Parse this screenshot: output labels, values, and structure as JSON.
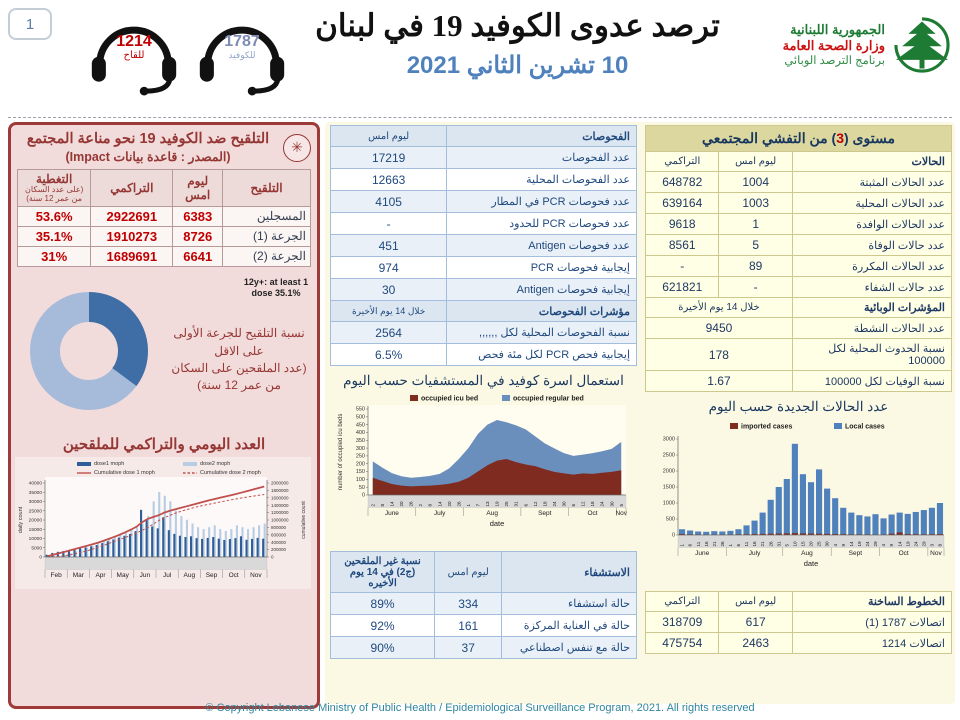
{
  "header": {
    "page_number": "1",
    "hotline_vaccine": {
      "number": "1214",
      "label": "للقاح"
    },
    "hotline_covid": {
      "number": "1787",
      "label": "للكوفيد"
    },
    "title": "ترصد عدوى الكوفيد 19 في لبنان",
    "date": "10 تشرين الثاني 2021",
    "logo": {
      "line1": "الجمهورية اللبنانية",
      "line2": "وزارة الصحة العامة",
      "line3": "برنامج الترصد الوبائي"
    }
  },
  "vaccination_panel": {
    "title": "التلقيح ضد الكوفيد 19  نحو مناعة المجتمع",
    "subtitle": "(المصدر : قاعدة بيانات Impact)",
    "table": {
      "headers": [
        "التلقيح",
        "ليوم امس",
        "التراكمي",
        "التغطية"
      ],
      "coverage_note": "(على عدد السكان من عمر 12 سنة)",
      "rows": [
        {
          "label": "المسجلين",
          "yesterday": "6383",
          "cumulative": "2922691",
          "coverage": "53.6%"
        },
        {
          "label": "الجرعة (1)",
          "yesterday": "8726",
          "cumulative": "1910273",
          "coverage": "35.1%"
        },
        {
          "label": "الجرعة (2)",
          "yesterday": "6641",
          "cumulative": "1689691",
          "coverage": "31%"
        }
      ]
    },
    "donut_label": "12y+: at least 1 dose 35.1%",
    "donut_note1": "نسبة التلقيح للجرعة الأولى على الاقل",
    "donut_note2": "(عدد الملقحين على السكان من عمر 12 سنة)",
    "chart_title": "العدد اليومي والتراكمي للملقحين"
  },
  "tests_table": {
    "headers": [
      "الفحوصات",
      "ليوم امس"
    ],
    "rows": [
      [
        "عدد الفحوصات",
        "17219"
      ],
      [
        "عدد الفحوصات المحلية",
        "12663"
      ],
      [
        "عدد فحوصات PCR في المطار",
        "4105"
      ],
      [
        "عدد فحوصات PCR للحدود",
        "-"
      ],
      [
        "عدد فحوصات Antigen",
        "451"
      ],
      [
        "إيجابية فحوصات PCR",
        "974"
      ],
      [
        "إيجابية فحوصات Antigen",
        "30"
      ]
    ],
    "subheader": [
      "مؤشرات الفحوصات",
      "خلال 14 يوم الأخيرة"
    ],
    "indicator_rows": [
      [
        "نسبة الفحوصات المحلية لكل ,,,,,,",
        "2564"
      ],
      [
        "إيجابية فحص PCR لكل مئة فحص",
        "6.5%"
      ]
    ]
  },
  "beds_chart_title": "استعمال اسرة كوفيد في المستشفيات حسب اليوم",
  "hospital_table": {
    "headers": [
      "الاستشفاء",
      "ليوم امس",
      "نسبة غير الملقحين (ج2) في 14 يوم الأخيره"
    ],
    "rows": [
      [
        "حالة استشفاء",
        "334",
        "89%"
      ],
      [
        "حالة في العناية المركزة",
        "161",
        "92%"
      ],
      [
        "حالة مع تنفس اصطناعي",
        "37",
        "90%"
      ]
    ]
  },
  "outbreak_table": {
    "title_pre": "مستوى (",
    "title_level": "3",
    "title_post": ") من التفشي المجتمعي",
    "headers": [
      "الحالات",
      "ليوم امس",
      "التراكمي"
    ],
    "rows": [
      [
        "عدد الحالات المثبتة",
        "1004",
        "648782"
      ],
      [
        "عدد الحالات المحلية",
        "1003",
        "639164"
      ],
      [
        "عدد الحالات الوافدة",
        "1",
        "9618"
      ],
      [
        "عدد حالات الوفاة",
        "5",
        "8561"
      ],
      [
        "عدد الحالات المكررة",
        "89",
        "-"
      ],
      [
        "عدد حالات الشفاء",
        "-",
        "621821"
      ]
    ],
    "subheader": [
      "المؤشرات الوبائية",
      "خلال 14 يوم الأخيرة"
    ],
    "indicator_rows": [
      [
        "عدد الحالات النشطة",
        "9450"
      ],
      [
        "نسبة الحدوث المحلية لكل 100000",
        "178"
      ],
      [
        "نسبة الوفيات لكل 100000",
        "1.67"
      ]
    ]
  },
  "new_cases_title": "عدد الحالات الجديدة حسب اليوم",
  "hotlines_table": {
    "headers": [
      "الخطوط الساخنة",
      "ليوم امس",
      "التراكمي"
    ],
    "rows": [
      [
        "اتصالات 1787 (1)",
        "617",
        "318709"
      ],
      [
        "اتصالات 1214",
        "2463",
        "475754"
      ]
    ]
  },
  "footer": "© Copyright Lebanese Ministry of Public Health / Epidemiological Surveillance Program, 2021. All rights reserved",
  "chart_data": [
    {
      "id": "vaccination_donut",
      "type": "pie",
      "title": "12y+: at least 1 dose 35.1%",
      "slices": [
        {
          "label": "12y+ with at least 1 dose",
          "value": 35.1,
          "color": "#3f6da5"
        },
        {
          "label": "remainder of 12y+ population",
          "value": 64.9,
          "color": "#a6bbda"
        }
      ]
    },
    {
      "id": "daily_vaccination",
      "type": "bar+line",
      "title": "العدد اليومي والتراكمي للملقحين",
      "ylabel_left": "daily count",
      "ylabel_right": "cumulative count",
      "ylim_left": [
        0,
        40000
      ],
      "ylim_right": [
        0,
        2000000
      ],
      "legend": [
        "dose1  moph",
        "dose2 moph",
        "Cumulative dose 1 moph",
        "Cumulative dose 2 moph"
      ],
      "months": [
        {
          "label": "Feb",
          "count": 4
        },
        {
          "label": "Mar",
          "count": 4
        },
        {
          "label": "Apr",
          "count": 4
        },
        {
          "label": "May",
          "count": 4
        },
        {
          "label": "Jun",
          "count": 4
        },
        {
          "label": "Jul",
          "count": 4
        },
        {
          "label": "Aug",
          "count": 4
        },
        {
          "label": "Sep",
          "count": 4
        },
        {
          "label": "Oct",
          "count": 4
        },
        {
          "label": "Nov",
          "count": 4
        }
      ],
      "series": [
        {
          "name": "dose1 moph",
          "color": "#2e5d97",
          "values": [
            1200,
            2200,
            2800,
            3200,
            3600,
            4200,
            4800,
            5200,
            5800,
            6500,
            7500,
            8500,
            9500,
            10500,
            11500,
            12500,
            14000,
            25500,
            20000,
            16500,
            15500,
            21500,
            14500,
            12500,
            11500,
            10800,
            11200,
            10200,
            9800,
            10300,
            10800,
            9900,
            9200,
            9700,
            10200,
            11200,
            9300,
            9800,
            10300,
            9900
          ]
        },
        {
          "name": "dose2 moph",
          "color": "#b8cce4",
          "values": [
            100,
            300,
            600,
            1100,
            2100,
            3100,
            4100,
            5100,
            6100,
            8100,
            9100,
            10100,
            11100,
            12100,
            13100,
            15100,
            16100,
            18100,
            22100,
            30100,
            35100,
            33100,
            30100,
            25100,
            22100,
            20100,
            18100,
            16100,
            15100,
            16100,
            17100,
            15100,
            14100,
            15100,
            17100,
            16100,
            15100,
            16100,
            17100,
            18100
          ]
        },
        {
          "name": "Cumulative dose 1 moph",
          "color": "#c0504d",
          "style": "solid",
          "values": [
            25000,
            60000,
            100000,
            140000,
            180000,
            220000,
            260000,
            300000,
            340000,
            385000,
            435000,
            490000,
            545000,
            605000,
            670000,
            740000,
            820000,
            940000,
            1030000,
            1080000,
            1130000,
            1200000,
            1250000,
            1290000,
            1330000,
            1370000,
            1410000,
            1450000,
            1490000,
            1530000,
            1565000,
            1600000,
            1635000,
            1670000,
            1705000,
            1745000,
            1785000,
            1825000,
            1865000,
            1905000
          ]
        },
        {
          "name": "Cumulative dose 2 moph",
          "color": "#c0504d",
          "style": "dashed",
          "values": [
            2000,
            8000,
            18000,
            35000,
            60000,
            90000,
            125000,
            165000,
            210000,
            260000,
            310000,
            365000,
            420000,
            475000,
            530000,
            590000,
            650000,
            720000,
            800000,
            890000,
            985000,
            1060000,
            1125000,
            1185000,
            1235000,
            1280000,
            1320000,
            1360000,
            1395000,
            1425000,
            1455000,
            1485000,
            1515000,
            1545000,
            1572000,
            1598000,
            1622000,
            1645000,
            1668000,
            1688000
          ]
        }
      ]
    },
    {
      "id": "hospital_beds",
      "type": "area",
      "title": "استعمال اسرة كوفيد في المستشفيات حسب اليوم",
      "ylabel": "number of occupied icu beds",
      "xlabel": "date",
      "ylim": [
        0,
        550
      ],
      "ystep": 50,
      "legend": [
        "occupied icu bed",
        "occupied regular bed"
      ],
      "x_labels": [
        "2",
        "8",
        "14",
        "20",
        "26",
        "2",
        "8",
        "14",
        "20",
        "26",
        "1",
        "7",
        "13",
        "19",
        "25",
        "31",
        "6",
        "12",
        "18",
        "24",
        "30",
        "6",
        "12",
        "18",
        "24",
        "30",
        "5"
      ],
      "months": [
        {
          "label": "June",
          "count": 5
        },
        {
          "label": "July",
          "count": 5
        },
        {
          "label": "Aug",
          "count": 6
        },
        {
          "label": "Sept",
          "count": 5
        },
        {
          "label": "Oct",
          "count": 5
        },
        {
          "label": "Nov",
          "count": 1
        }
      ],
      "series": [
        {
          "name": "occupied icu bed",
          "color": "#7f2b20",
          "values": [
            110,
            90,
            70,
            60,
            55,
            58,
            60,
            65,
            72,
            85,
            110,
            150,
            190,
            220,
            230,
            210,
            195,
            185,
            165,
            148,
            138,
            130,
            138,
            135,
            142,
            148,
            158
          ]
        },
        {
          "name": "occupied regular bed",
          "color": "#6b8fbc",
          "values": [
            105,
            85,
            70,
            60,
            55,
            57,
            62,
            70,
            98,
            145,
            190,
            240,
            260,
            260,
            235,
            235,
            225,
            190,
            165,
            150,
            130,
            120,
            120,
            133,
            138,
            147,
            182
          ]
        }
      ]
    },
    {
      "id": "new_cases",
      "type": "bar",
      "title": "عدد الحالات الجديدة حسب اليوم",
      "xlabel": "date",
      "ylim": [
        0,
        3000
      ],
      "ystep": 500,
      "legend": [
        "imported cases",
        "Local cases"
      ],
      "x_labels": [
        "1",
        "6",
        "11",
        "16",
        "21",
        "26",
        "1",
        "6",
        "11",
        "16",
        "21",
        "26",
        "31",
        "5",
        "10",
        "15",
        "20",
        "25",
        "30",
        "4",
        "9",
        "14",
        "19",
        "24",
        "29",
        "4",
        "9",
        "14",
        "19",
        "24",
        "29",
        "3",
        "8"
      ],
      "months": [
        {
          "label": "June",
          "count": 6
        },
        {
          "label": "July",
          "count": 7
        },
        {
          "label": "Aug",
          "count": 6
        },
        {
          "label": "Sept",
          "count": 6
        },
        {
          "label": "Oct",
          "count": 6
        },
        {
          "label": "Nov",
          "count": 2
        }
      ],
      "series": [
        {
          "name": "imported cases",
          "color": "#7f2b20",
          "values": [
            30,
            20,
            15,
            10,
            15,
            12,
            15,
            20,
            25,
            30,
            35,
            40,
            45,
            50,
            60,
            50,
            45,
            40,
            35,
            30,
            25,
            20,
            20,
            18,
            15,
            15,
            40,
            80,
            30,
            25,
            20,
            25,
            30
          ]
        },
        {
          "name": "Local cases",
          "color": "#4f81bd",
          "values": [
            180,
            140,
            110,
            100,
            120,
            110,
            130,
            180,
            300,
            450,
            700,
            1100,
            1500,
            1750,
            2850,
            1900,
            1650,
            2050,
            1450,
            1150,
            850,
            700,
            620,
            580,
            650,
            520,
            640,
            700,
            660,
            720,
            780,
            850,
            1000
          ]
        }
      ]
    }
  ]
}
